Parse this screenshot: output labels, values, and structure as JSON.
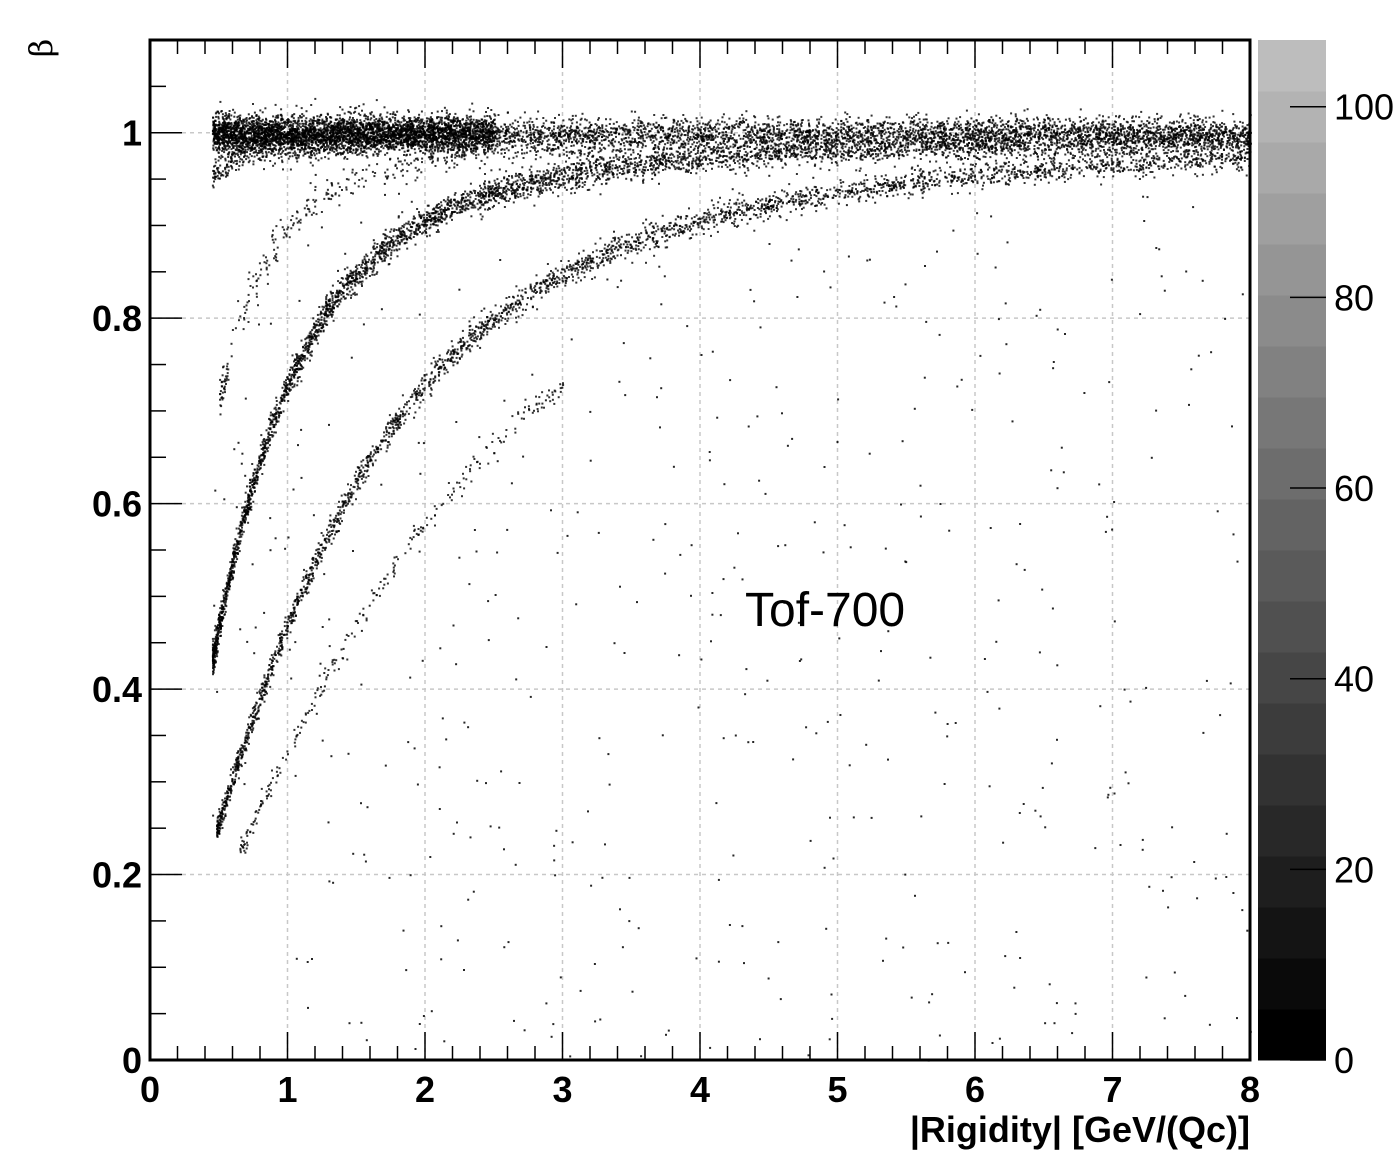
{
  "chart_data": {
    "type": "heatmap",
    "title": "",
    "annotation": "Tof-700",
    "xlabel": "|Rigidity| [GeV/(Qc)]",
    "ylabel": "β",
    "xlim": [
      0,
      8
    ],
    "ylim": [
      0,
      1.1
    ],
    "x_ticks": [
      0,
      1,
      2,
      3,
      4,
      5,
      6,
      7,
      8
    ],
    "y_ticks": [
      0,
      0.2,
      0.4,
      0.6,
      0.8,
      1
    ],
    "x_tick_labels": [
      "0",
      "1",
      "2",
      "3",
      "4",
      "5",
      "6",
      "7",
      "8"
    ],
    "y_tick_labels": [
      "0",
      "0.2",
      "0.4",
      "0.6",
      "0.8",
      "1"
    ],
    "grid": true,
    "colorbar": {
      "zlim": [
        0,
        107
      ],
      "ticks": [
        0,
        20,
        40,
        60,
        80,
        100
      ],
      "tick_labels": [
        "0",
        "20",
        "40",
        "60",
        "80",
        "100"
      ],
      "colormap": "grayscale dark-to-light",
      "low_color": "#000000",
      "high_color": "#bdbdbd"
    },
    "bands": [
      {
        "particle_mass_GeV": 0.000511,
        "charge": 1,
        "x_range": [
          0.45,
          2.5
        ]
      },
      {
        "particle_mass_GeV": 0.1396,
        "charge": 1,
        "x_range": [
          0.45,
          8
        ]
      },
      {
        "particle_mass_GeV": 0.938,
        "charge": 1,
        "x_range": [
          0.45,
          8
        ]
      },
      {
        "particle_mass_GeV": 1.876,
        "charge": 1,
        "x_range": [
          0.48,
          8
        ]
      },
      {
        "particle_mass_GeV": 0.494,
        "charge": 1,
        "x_range": [
          0.5,
          3.5
        ]
      },
      {
        "particle_mass_GeV": 2.81,
        "charge": 1,
        "x_range": [
          0.65,
          3
        ]
      }
    ]
  }
}
